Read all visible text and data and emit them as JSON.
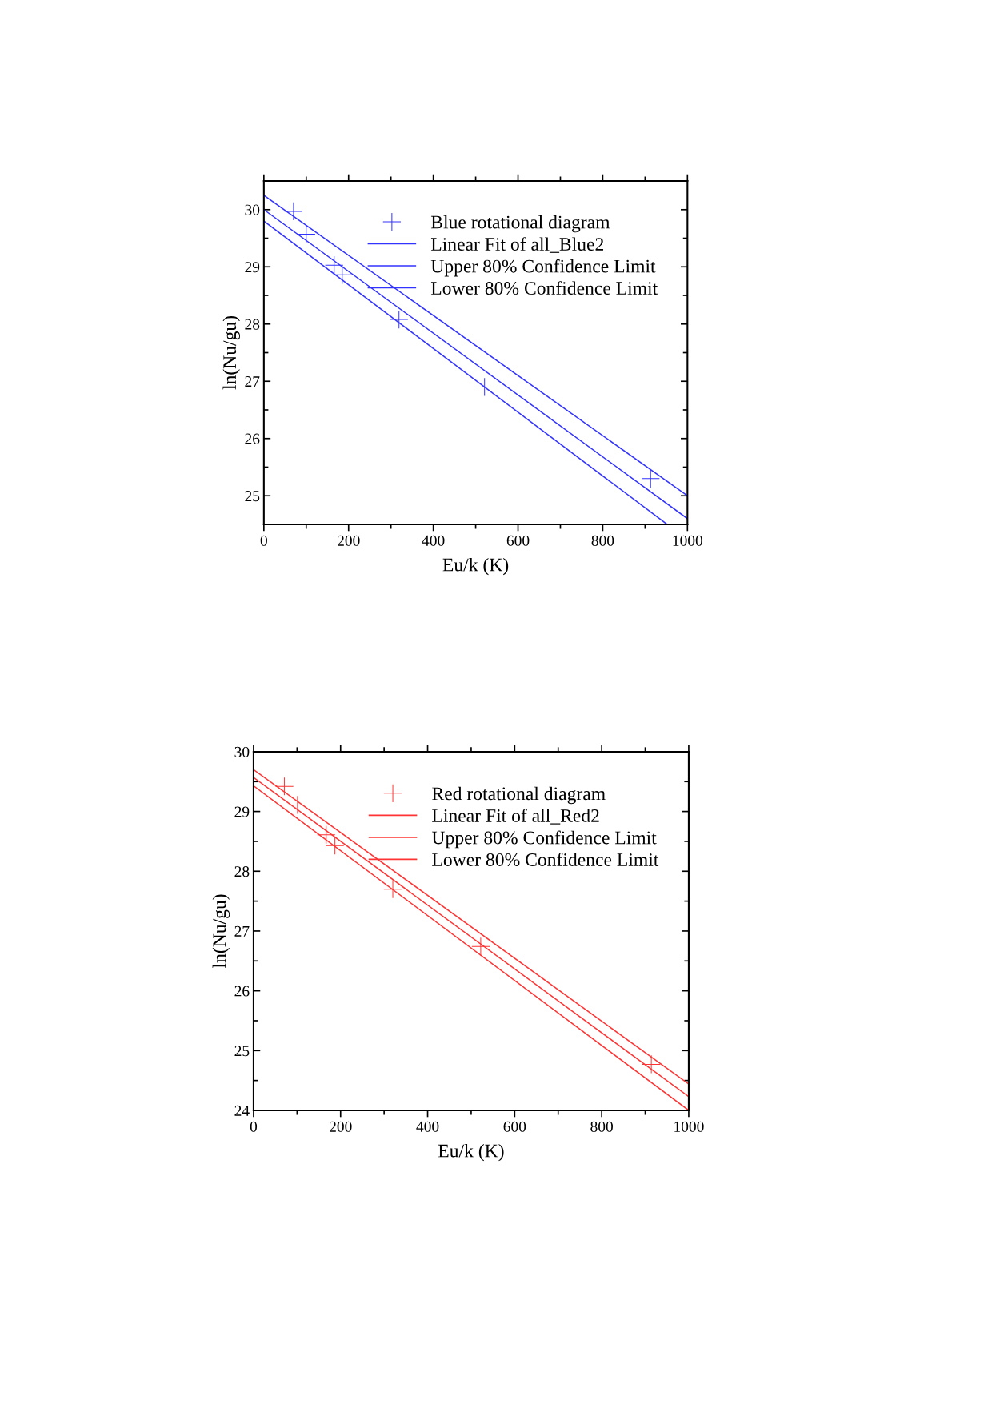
{
  "chart_data": [
    {
      "type": "scatter",
      "xlabel": "Eu/k (K)",
      "ylabel": "ln(Nu/gu)",
      "xlim": [
        0,
        1000
      ],
      "ylim": [
        24.5,
        30.5
      ],
      "xticks": [
        0,
        200,
        400,
        600,
        800,
        1000
      ],
      "yticks": [
        25,
        26,
        27,
        28,
        29,
        30
      ],
      "legend": "top right",
      "grid": false,
      "series": [
        {
          "name": "Blue rotational diagram",
          "marker": "cross",
          "color": "#3333ff",
          "x": [
            70,
            100,
            166,
            185,
            319,
            521,
            913
          ],
          "values": [
            29.97,
            29.57,
            29.03,
            28.86,
            28.08,
            26.9,
            25.3
          ]
        },
        {
          "name": "Linear Fit of all_Blue2",
          "type": "line",
          "color": "#3333ff",
          "x": [
            0,
            1000
          ],
          "values": [
            30.0,
            24.6
          ]
        },
        {
          "name": "Upper 80% Confidence Limit",
          "type": "line",
          "color": "#3333ff",
          "x": [
            0,
            1000
          ],
          "values": [
            30.25,
            25.0
          ]
        },
        {
          "name": "Lower 80% Confidence Limit",
          "type": "line",
          "color": "#3333ff",
          "x": [
            0,
            952
          ],
          "values": [
            29.8,
            24.5
          ]
        }
      ]
    },
    {
      "type": "scatter",
      "xlabel": "Eu/k (K)",
      "ylabel": "ln(Nu/gu)",
      "xlim": [
        0,
        1000
      ],
      "ylim": [
        24,
        30
      ],
      "xticks": [
        0,
        200,
        400,
        600,
        800,
        1000
      ],
      "yticks": [
        24,
        25,
        26,
        27,
        28,
        29,
        30
      ],
      "legend": "top right",
      "grid": false,
      "series": [
        {
          "name": "Red rotational diagram",
          "marker": "cross",
          "color": "#ff3333",
          "x": [
            71,
            101,
            167,
            187,
            320,
            522,
            914
          ],
          "values": [
            29.42,
            29.11,
            28.61,
            28.43,
            27.7,
            26.74,
            24.77
          ]
        },
        {
          "name": "Linear Fit of all_Red2",
          "type": "line",
          "color": "#ff3333",
          "x": [
            0,
            1000
          ],
          "values": [
            29.57,
            24.23
          ]
        },
        {
          "name": "Upper 80% Confidence Limit",
          "type": "line",
          "color": "#ff3333",
          "x": [
            0,
            1000
          ],
          "values": [
            29.7,
            24.44
          ]
        },
        {
          "name": "Lower 80% Confidence Limit",
          "type": "line",
          "color": "#ff3333",
          "x": [
            0,
            1000
          ],
          "values": [
            29.43,
            24.0
          ]
        }
      ]
    }
  ]
}
